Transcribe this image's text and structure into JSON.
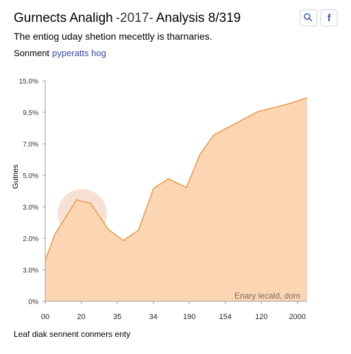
{
  "header": {
    "title_before": "Gurnects Analigh",
    "title_highlight": "-2017-",
    "title_after": "Analysis 8/319",
    "subtitle": "The entiog uday shetion mecettly is tharnaries.",
    "link_prefix": "Sonment",
    "link": "pyperatts hog",
    "icon_label": "f"
  },
  "chart_data": {
    "type": "area",
    "y_label": "Gutnes",
    "annotation": "Enary lecald, dom",
    "color": "#fcd6b2",
    "line_color": "#ef9a4a",
    "x": [
      0,
      0.27,
      0.87,
      1.26,
      1.75,
      2.17,
      2.59,
      3.01,
      3.42,
      3.92,
      4.3,
      4.68,
      5.9,
      6.73,
      7.27
    ],
    "values": [
      1.3,
      2.13,
      3.22,
      3.11,
      2.28,
      1.93,
      2.26,
      3.59,
      3.89,
      3.61,
      4.67,
      5.28,
      6.02,
      6.26,
      6.46
    ],
    "xlim": [
      0,
      7.27
    ],
    "ylim": [
      0,
      7
    ],
    "xticks": [
      {
        "value": 0,
        "label": "00"
      },
      {
        "value": 1,
        "label": "20"
      },
      {
        "value": 2,
        "label": "35"
      },
      {
        "value": 3,
        "label": "34"
      },
      {
        "value": 4,
        "label": "190"
      },
      {
        "value": 5,
        "label": "154"
      },
      {
        "value": 6,
        "label": "120"
      },
      {
        "value": 7,
        "label": "2000"
      }
    ],
    "yticks": [
      {
        "value": 0,
        "label": "0%"
      },
      {
        "value": 1,
        "label": "3.0%"
      },
      {
        "value": 2,
        "label": "2.0%"
      },
      {
        "value": 3,
        "label": "3.0%"
      },
      {
        "value": 4,
        "label": "5.0%"
      },
      {
        "value": 5,
        "label": "7.0%"
      },
      {
        "value": 6,
        "label": "9.5%"
      },
      {
        "value": 7,
        "label": "15.0%"
      }
    ]
  },
  "footer": "Leaf diak sennent conmers enty"
}
